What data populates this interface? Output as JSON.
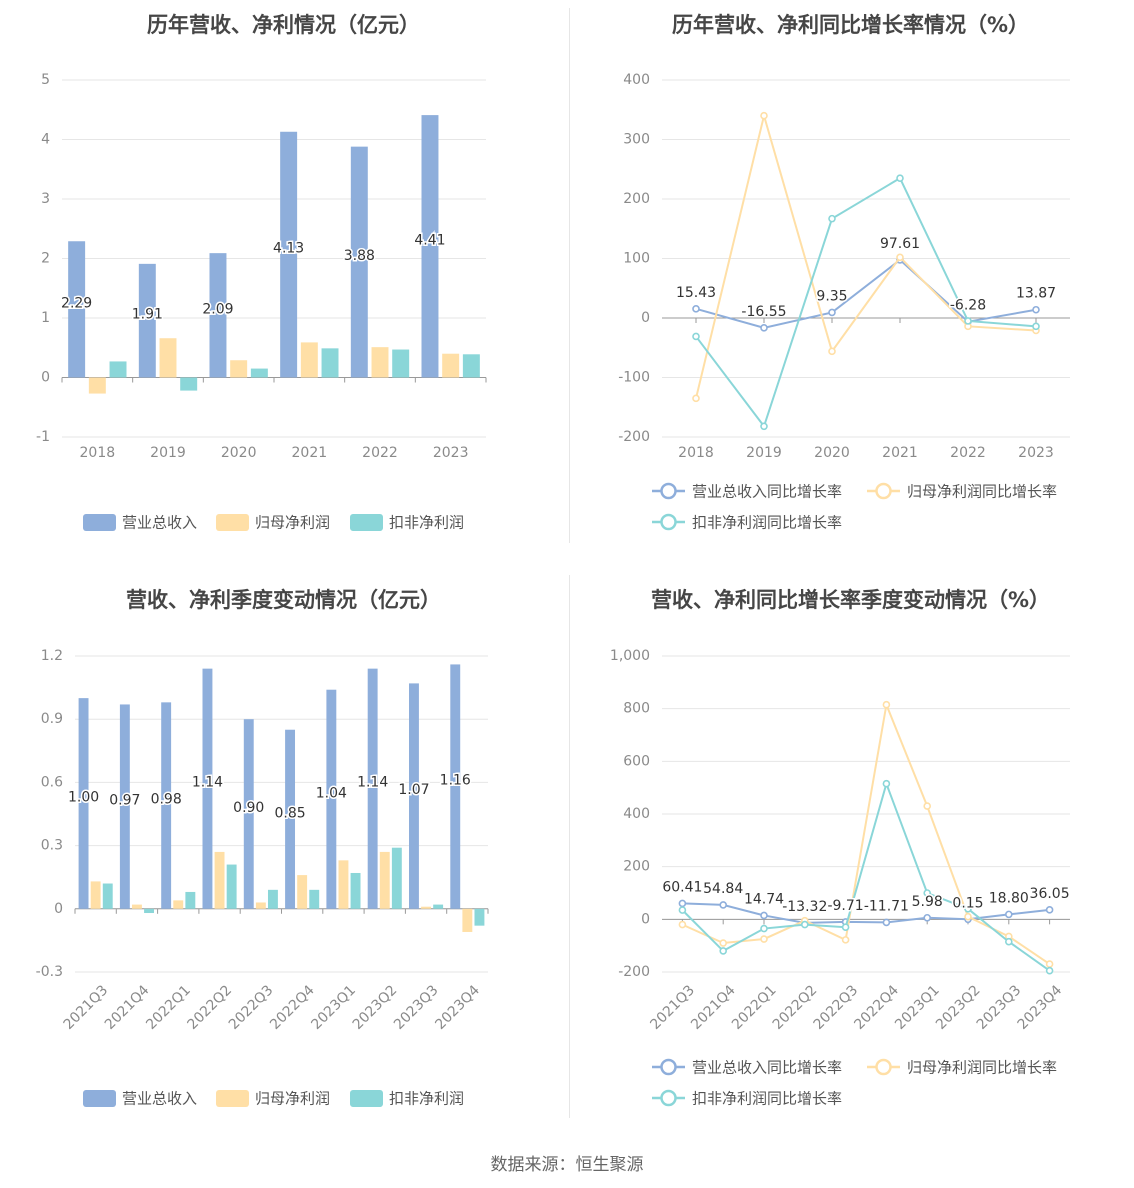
{
  "source": "数据来源：恒生聚源",
  "colors": {
    "revenue": "#8eaedb",
    "net_profit": "#ffdfa6",
    "deducted": "#8ad6d8",
    "grid": "#e6e6e6",
    "axis": "#999999"
  },
  "chart_data": [
    {
      "type": "bar",
      "title": "历年营收、净利情况（亿元）",
      "categories": [
        "2018",
        "2019",
        "2020",
        "2021",
        "2022",
        "2023"
      ],
      "ylim": [
        -1,
        5
      ],
      "yticks": [
        "-1",
        "0",
        "1",
        "2",
        "3",
        "4",
        "5"
      ],
      "grid": true,
      "legend": "bottom",
      "series": [
        {
          "name": "营业总收入",
          "values": [
            2.29,
            1.91,
            2.09,
            4.13,
            3.88,
            4.41
          ],
          "labels": [
            "2.29",
            "1.91",
            "2.09",
            "4.13",
            "3.88",
            "4.41"
          ]
        },
        {
          "name": "归母净利润",
          "values": [
            -0.27,
            0.66,
            0.29,
            0.59,
            0.51,
            0.4
          ]
        },
        {
          "name": "扣非净利润",
          "values": [
            0.27,
            -0.22,
            0.15,
            0.49,
            0.47,
            0.39
          ]
        }
      ]
    },
    {
      "type": "line",
      "title": "历年营收、净利同比增长率情况（%）",
      "categories": [
        "2018",
        "2019",
        "2020",
        "2021",
        "2022",
        "2023"
      ],
      "ylim": [
        -200,
        400
      ],
      "yticks": [
        "-200",
        "-100",
        "0",
        "100",
        "200",
        "300",
        "400"
      ],
      "grid": true,
      "legend": "bottom",
      "series": [
        {
          "name": "营业总收入同比增长率",
          "values": [
            15.43,
            -16.55,
            9.35,
            97.61,
            -6.28,
            13.87
          ],
          "labels": [
            "15.43",
            "-16.55",
            "9.35",
            "97.61",
            "-6.28",
            "13.87"
          ]
        },
        {
          "name": "归母净利润同比增长率",
          "values": [
            -135,
            340,
            -56,
            102,
            -14,
            -21
          ]
        },
        {
          "name": "扣非净利润同比增长率",
          "values": [
            -31,
            -182,
            167,
            235,
            -5,
            -14
          ]
        }
      ]
    },
    {
      "type": "bar",
      "title": "营收、净利季度变动情况（亿元）",
      "categories": [
        "2021Q3",
        "2021Q4",
        "2022Q1",
        "2022Q2",
        "2022Q3",
        "2022Q4",
        "2023Q1",
        "2023Q2",
        "2023Q3",
        "2023Q4"
      ],
      "ylim": [
        -0.3,
        1.2
      ],
      "yticks": [
        "-0.3",
        "0",
        "0.3",
        "0.6",
        "0.9",
        "1.2"
      ],
      "grid": true,
      "legend": "bottom",
      "series": [
        {
          "name": "营业总收入",
          "values": [
            1.0,
            0.97,
            0.98,
            1.14,
            0.9,
            0.85,
            1.04,
            1.14,
            1.07,
            1.16
          ],
          "labels": [
            "1.00",
            "0.97",
            "0.98",
            "1.14",
            "0.90",
            "0.85",
            "1.04",
            "1.14",
            "1.07",
            "1.16"
          ]
        },
        {
          "name": "归母净利润",
          "values": [
            0.13,
            0.02,
            0.04,
            0.27,
            0.03,
            0.16,
            0.23,
            0.27,
            0.01,
            -0.11
          ]
        },
        {
          "name": "扣非净利润",
          "values": [
            0.12,
            -0.02,
            0.08,
            0.21,
            0.09,
            0.09,
            0.17,
            0.29,
            0.02,
            -0.08
          ]
        }
      ]
    },
    {
      "type": "line",
      "title": "营收、净利同比增长率季度变动情况（%）",
      "categories": [
        "2021Q3",
        "2021Q4",
        "2022Q1",
        "2022Q2",
        "2022Q3",
        "2022Q4",
        "2023Q1",
        "2023Q2",
        "2023Q3",
        "2023Q4"
      ],
      "ylim": [
        -200,
        1000
      ],
      "yticks": [
        "-200",
        "0",
        "200",
        "400",
        "600",
        "800",
        "1,000"
      ],
      "grid": true,
      "legend": "bottom",
      "series": [
        {
          "name": "营业总收入同比增长率",
          "values": [
            60.41,
            54.84,
            14.74,
            -13.32,
            -9.71,
            -11.71,
            5.98,
            0.15,
            18.8,
            36.05
          ],
          "labels": [
            "60.41",
            "54.84",
            "14.74",
            "-13.32",
            "-9.71",
            "-11.71",
            "5.98",
            "0.15",
            "18.80",
            "36.05"
          ]
        },
        {
          "name": "归母净利润同比增长率",
          "values": [
            -20,
            -90,
            -75,
            -5,
            -78,
            815,
            430,
            10,
            -65,
            -170
          ]
        },
        {
          "name": "扣非净利润同比增长率",
          "values": [
            35,
            -120,
            -35,
            -20,
            -30,
            515,
            100,
            40,
            -85,
            -195
          ]
        }
      ]
    }
  ]
}
